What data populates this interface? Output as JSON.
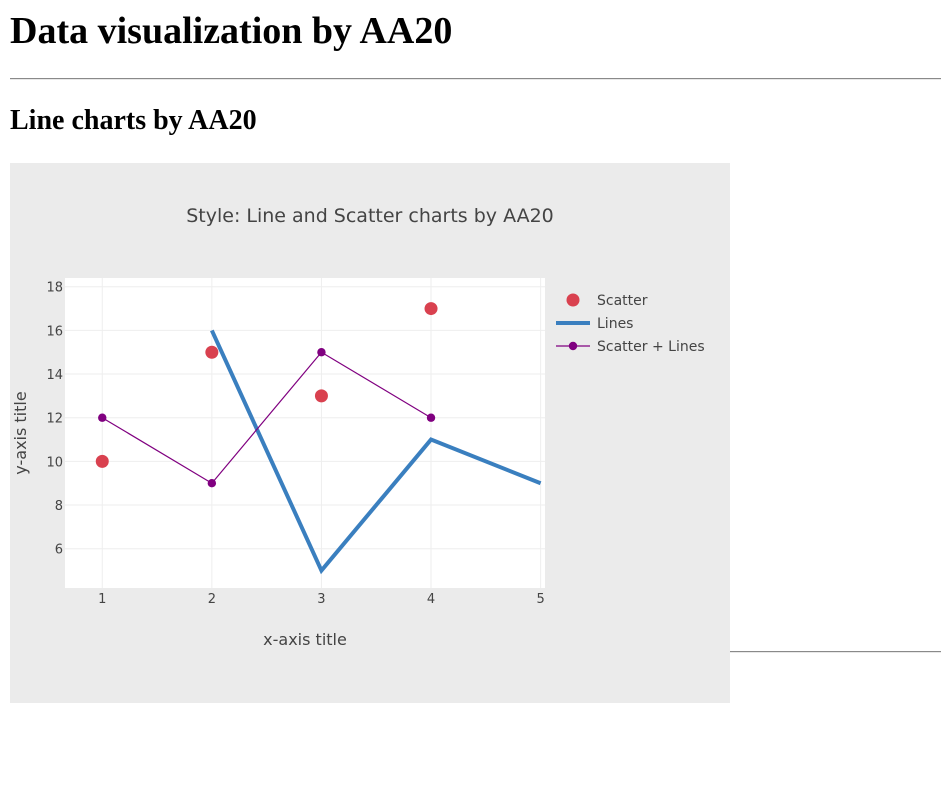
{
  "page": {
    "heading": "Data visualization by AA20",
    "subheading": "Line charts by AA20"
  },
  "chart_data": {
    "type": "line",
    "title": "Style: Line and Scatter charts by AA20",
    "xlabel": "x-axis title",
    "ylabel": "y-axis title",
    "xlim": [
      0.66,
      5.04
    ],
    "ylim": [
      4.2,
      18.4
    ],
    "x_ticks": [
      1,
      2,
      3,
      4,
      5
    ],
    "y_ticks": [
      6,
      8,
      10,
      12,
      14,
      16,
      18
    ],
    "grid": true,
    "legend_position": "top-right",
    "series": [
      {
        "name": "Scatter",
        "mode": "markers",
        "color": "#d9414f",
        "x": [
          1,
          2,
          3,
          4
        ],
        "y": [
          10,
          15,
          13,
          17
        ]
      },
      {
        "name": "Lines",
        "mode": "lines",
        "color": "#3a7fbf",
        "x": [
          2,
          3,
          4,
          5
        ],
        "y": [
          16,
          5,
          11,
          9
        ]
      },
      {
        "name": "Scatter + Lines",
        "mode": "lines+markers",
        "color": "#800080",
        "x": [
          1,
          2,
          3,
          4
        ],
        "y": [
          12,
          9,
          15,
          12
        ]
      }
    ]
  }
}
